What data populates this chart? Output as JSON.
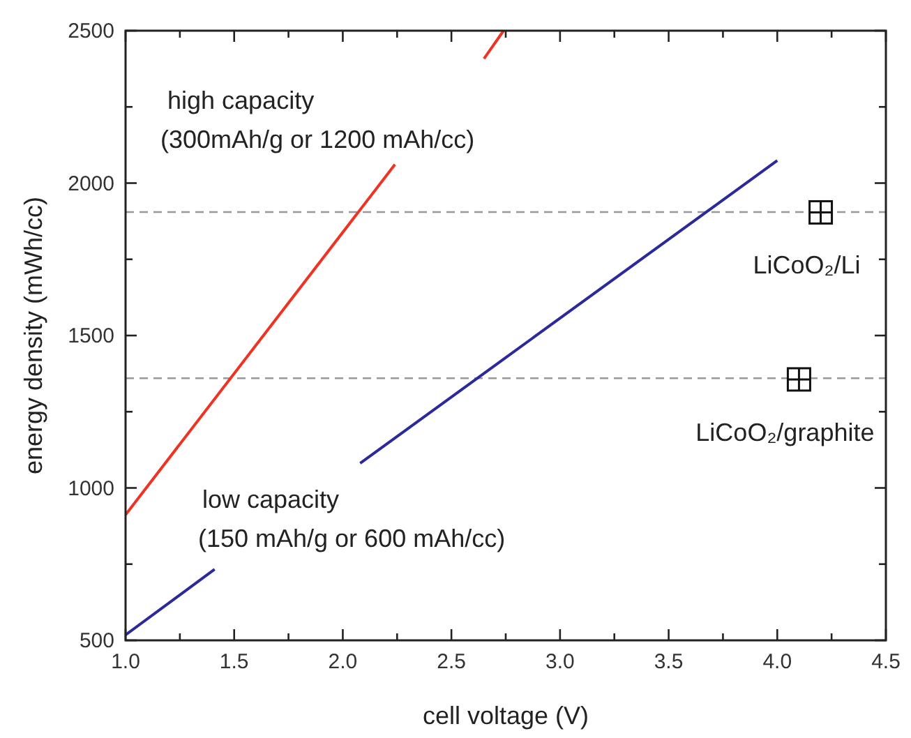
{
  "chart_data": {
    "type": "line",
    "xlabel": "cell voltage (V)",
    "ylabel": "energy density (mWh/cc)",
    "xlim": [
      1.0,
      4.5
    ],
    "xticks": [
      {
        "value": 1,
        "label": "1.0"
      },
      {
        "value": 1.25,
        "label": null
      },
      {
        "value": 1.5,
        "label": "1.5"
      },
      {
        "value": 1.75,
        "label": null
      },
      {
        "value": 2,
        "label": "2.0"
      },
      {
        "value": 2.25,
        "label": null
      },
      {
        "value": 2.5,
        "label": "2.5"
      },
      {
        "value": 2.75,
        "label": null
      },
      {
        "value": 3,
        "label": "3.0"
      },
      {
        "value": 3.25,
        "label": null
      },
      {
        "value": 3.5,
        "label": "3.5"
      },
      {
        "value": 3.75,
        "label": null
      },
      {
        "value": 4,
        "label": "4.0"
      },
      {
        "value": 4.25,
        "label": null
      },
      {
        "value": 4.5,
        "label": "4.5"
      }
    ],
    "ylim": [
      500,
      2500
    ],
    "yticks": [
      500,
      {
        "value": 750,
        "label": null
      },
      1000,
      {
        "value": 1250,
        "label": null
      },
      1500,
      {
        "value": 1750,
        "label": null
      },
      2000,
      {
        "value": 2250,
        "label": null
      },
      2500
    ],
    "grid": false,
    "series": [
      {
        "color": "#ee3322",
        "x": [
          1.0,
          2.24,
          2.45,
          2.65,
          2.74
        ],
        "values": [
          912,
          2061,
          null,
          2408,
          2500
        ]
      },
      {
        "color": "#2a2a9a",
        "x": [
          1.0,
          1.41,
          1.75,
          2.08,
          4.0
        ],
        "values": [
          518,
          733,
          null,
          1081,
          2074
        ]
      },
      {
        "type": "scatter",
        "marker": "square",
        "color": "#111111",
        "x": [
          4.2,
          4.1
        ],
        "values": [
          1904,
          1356
        ]
      }
    ],
    "ref_lines": [
      {
        "axis": "y",
        "value": 1905,
        "color": "#999999",
        "line_style": "dashed"
      },
      {
        "axis": "y",
        "value": 1360,
        "color": "#999999",
        "line_style": "dashed"
      }
    ],
    "annotations": [
      "high capacity",
      "(300mAh/g or 1200 mAh/cc)",
      "low capacity",
      "(150 mAh/g or 600 mAh/cc)",
      {
        "text": "LiCoO₂/Li",
        "x": 4.2,
        "y": 1904
      },
      {
        "text": "LiCoO₂/graphite",
        "x": 4.1,
        "y": 1356
      }
    ]
  }
}
